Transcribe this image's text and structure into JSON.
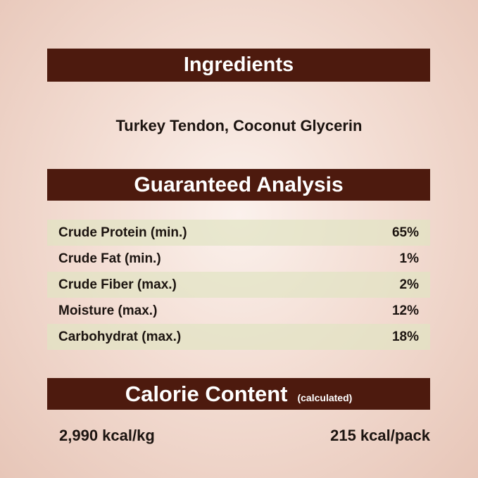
{
  "ingredients": {
    "title": "Ingredients",
    "text": "Turkey Tendon, Coconut Glycerin"
  },
  "analysis": {
    "title": "Guaranteed Analysis",
    "rows": [
      {
        "label": "Crude Protein (min.)",
        "value": "65%"
      },
      {
        "label": "Crude Fat (min.)",
        "value": "1%"
      },
      {
        "label": "Crude Fiber (max.)",
        "value": "2%"
      },
      {
        "label": "Moisture (max.)",
        "value": "12%"
      },
      {
        "label": "Carbohydrat (max.)",
        "value": "18%"
      }
    ]
  },
  "calorie": {
    "title": "Calorie Content",
    "subtitle": "(calculated)",
    "per_kg": "2,990 kcal/kg",
    "per_pack": "215 kcal/pack"
  },
  "colors": {
    "banner": "#4d1a0e",
    "row_shade": "#e1e4c3"
  }
}
